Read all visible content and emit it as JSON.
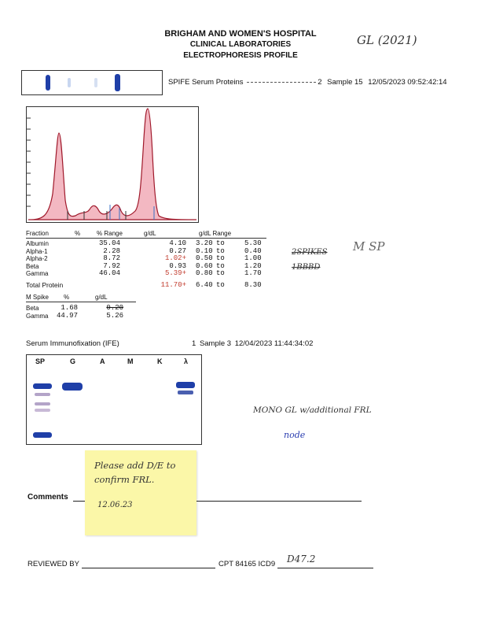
{
  "header": {
    "line1": "BRIGHAM AND WOMEN'S HOSPITAL",
    "line2": "CLINICAL LABORATORIES",
    "line3": "ELECTROPHORESIS PROFILE",
    "handwritten": "GL (2021)"
  },
  "spife": {
    "title": "SPIFE Serum Proteins",
    "redacted_suffix": "2",
    "sample": "Sample 15",
    "datetime": "12/05/2023  09:52:42:14"
  },
  "fractions": {
    "headers": [
      "Fraction",
      "%",
      "% Range",
      "g/dL",
      "g/dL Range"
    ],
    "rows": [
      {
        "name": "Albumin",
        "pct": "35.04",
        "gdl": "4.10",
        "flag": false,
        "lo": "3.20",
        "to": "to",
        "hi": "5.30"
      },
      {
        "name": "Alpha-1",
        "pct": "2.28",
        "gdl": "0.27",
        "flag": false,
        "lo": "0.10",
        "to": "to",
        "hi": "0.40"
      },
      {
        "name": "Alpha-2",
        "pct": "8.72",
        "gdl": "1.02+",
        "flag": true,
        "lo": "0.50",
        "to": "to",
        "hi": "1.00"
      },
      {
        "name": "Beta",
        "pct": "7.92",
        "gdl": "0.93",
        "flag": false,
        "lo": "0.60",
        "to": "to",
        "hi": "1.20"
      },
      {
        "name": "Gamma",
        "pct": "46.04",
        "gdl": "5.39+",
        "flag": true,
        "lo": "0.80",
        "to": "to",
        "hi": "1.70"
      }
    ],
    "total": {
      "name": "Total Protein",
      "gdl": "11.70+",
      "lo": "6.40",
      "to": "to",
      "hi": "8.30"
    }
  },
  "mspike": {
    "headers": [
      "M Spike",
      "%",
      "g/dL"
    ],
    "rows": [
      {
        "name": "Beta",
        "pct": "1.68",
        "gdl": "0.20"
      },
      {
        "name": "Gamma",
        "pct": "44.97",
        "gdl": "5.26"
      }
    ]
  },
  "notes": {
    "spikes": "2SPIKES",
    "bbbd": "1BBBD",
    "msp": "M SP",
    "mono": "MONO GL w/additional FRL",
    "node": "node"
  },
  "ife": {
    "title": "Serum Immunofixation (IFE)",
    "suffix": "1",
    "sample": "Sample 3",
    "datetime": "12/04/2023  11:44:34:02",
    "lanes": [
      "SP",
      "G",
      "A",
      "M",
      "K",
      "λ"
    ]
  },
  "sticky": {
    "line1": "Please add D/E to",
    "line2": "confirm FRL.",
    "date": "12.06.23"
  },
  "footer": {
    "comments": "Comments",
    "reviewed": "REVIEWED BY",
    "cpt": "CPT 84165 ICD9",
    "icd": "D47.2"
  },
  "colors": {
    "peak_fill": "#f3b8c2",
    "peak_stroke": "#a0192b",
    "band": "#1f3fa8",
    "sticky": "#fbf7a8"
  }
}
